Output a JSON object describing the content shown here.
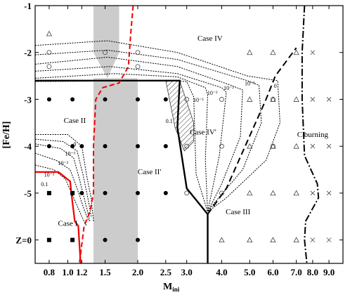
{
  "chart_data": {
    "type": "scatter",
    "xlabel": "M",
    "xlabel_sub": "ini",
    "ylabel": "[Fe/H]",
    "x_ticks": [
      {
        "pos": 0.0,
        "label": "0.8"
      },
      {
        "pos": 0.8,
        "label": "1.0"
      },
      {
        "pos": 1.4,
        "label": "1.2"
      },
      {
        "pos": 2.4,
        "label": "1.5"
      },
      {
        "pos": 3.8,
        "label": "2.0"
      },
      {
        "pos": 5.0,
        "label": "2.5"
      },
      {
        "pos": 5.9,
        "label": "3.0"
      },
      {
        "pos": 7.4,
        "label": "4.0"
      },
      {
        "pos": 8.6,
        "label": "5.0"
      },
      {
        "pos": 9.6,
        "label": "6.0"
      },
      {
        "pos": 10.6,
        "label": "7.0"
      },
      {
        "pos": 11.3,
        "label": "8.0"
      },
      {
        "pos": 12.0,
        "label": "9.0"
      }
    ],
    "y_ticks": [
      {
        "pos": -1,
        "label": "-1"
      },
      {
        "pos": -2,
        "label": "-2"
      },
      {
        "pos": -3,
        "label": "-3"
      },
      {
        "pos": -4,
        "label": "-4"
      },
      {
        "pos": -5,
        "label": "-5"
      },
      {
        "pos": -6,
        "label": "Z=0"
      }
    ],
    "xlim": [
      -0.6,
      12.6
    ],
    "ylim": [
      -6.5,
      -1
    ],
    "region_labels": [
      {
        "text": "Case I",
        "x": 0.8,
        "y": -5.7
      },
      {
        "text": "Case II",
        "x": 1.1,
        "y": -3.5
      },
      {
        "text": "Case II'",
        "x": 4.3,
        "y": -4.6
      },
      {
        "text": "Case III",
        "x": 8.1,
        "y": -5.45
      },
      {
        "text": "Case IV",
        "x": 6.9,
        "y": -1.75
      },
      {
        "text": "Case IV'",
        "x": 6.6,
        "y": -3.75
      },
      {
        "text": "C burning",
        "x": 11.3,
        "y": -3.8
      }
    ],
    "contour_labels": [
      {
        "text": "0",
        "x": 1.1,
        "y": -4.0
      },
      {
        "text": "10⁻³",
        "x": 0.9,
        "y": -4.2
      },
      {
        "text": "10⁻²",
        "x": 0.6,
        "y": -4.4
      },
      {
        "text": "10⁻²",
        "x": 0.0,
        "y": -4.65
      },
      {
        "text": "0.1",
        "x": -0.2,
        "y": -4.85
      },
      {
        "text": "0.1",
        "x": 5.15,
        "y": -3.5
      },
      {
        "text": "10⁻³",
        "x": 6.4,
        "y": -3.05
      },
      {
        "text": "10⁻²",
        "x": 7.0,
        "y": -2.9
      },
      {
        "text": "10⁻²",
        "x": 7.7,
        "y": -2.8
      },
      {
        "text": "10⁻³",
        "x": 8.6,
        "y": -2.7
      },
      {
        "text": "0",
        "x": 9.7,
        "y": -2.75
      }
    ],
    "series": [
      {
        "marker": "filled-circle",
        "points": [
          [
            0,
            -3
          ],
          [
            1,
            -3
          ],
          [
            2.4,
            -3
          ],
          [
            3.8,
            -3
          ],
          [
            5,
            -3
          ],
          [
            0,
            -4
          ],
          [
            1,
            -4
          ],
          [
            1.4,
            -4
          ],
          [
            2.4,
            -4
          ],
          [
            3.8,
            -4
          ],
          [
            5,
            -4
          ],
          [
            1.4,
            -5
          ],
          [
            2.4,
            -5
          ],
          [
            3.8,
            -5
          ],
          [
            5,
            -5
          ],
          [
            2.4,
            -6
          ],
          [
            3.8,
            -6
          ]
        ]
      },
      {
        "marker": "filled-square",
        "points": [
          [
            0,
            -5
          ],
          [
            1,
            -5
          ],
          [
            0,
            -6
          ],
          [
            1,
            -6
          ]
        ]
      },
      {
        "marker": "open-triangle",
        "points": [
          [
            0,
            -1.6
          ],
          [
            8.6,
            -2
          ],
          [
            9.6,
            -2
          ],
          [
            10.6,
            -2
          ],
          [
            8.6,
            -3
          ],
          [
            9.6,
            -3
          ],
          [
            10.6,
            -3
          ],
          [
            8.6,
            -4
          ],
          [
            9.6,
            -4
          ],
          [
            10.6,
            -4
          ],
          [
            8.6,
            -5
          ],
          [
            9.6,
            -5
          ],
          [
            10.6,
            -5
          ],
          [
            7.4,
            -6
          ],
          [
            8.6,
            -6
          ],
          [
            9.6,
            -6
          ],
          [
            10.6,
            -6
          ]
        ]
      },
      {
        "marker": "open-circle",
        "points": [
          [
            0,
            -2
          ],
          [
            0,
            -2.3
          ],
          [
            2.4,
            -2
          ],
          [
            3.8,
            -2
          ],
          [
            3.8,
            -2.3
          ],
          [
            5.9,
            -3
          ],
          [
            7.4,
            -3
          ],
          [
            5.9,
            -4
          ],
          [
            7.4,
            -4
          ],
          [
            9.6,
            -4
          ],
          [
            5.9,
            -5
          ],
          [
            7.4,
            -5
          ],
          [
            9.6,
            -3
          ]
        ]
      },
      {
        "marker": "cross",
        "points": [
          [
            11.3,
            -2
          ],
          [
            11.3,
            -3
          ],
          [
            12,
            -3
          ],
          [
            11.3,
            -4
          ],
          [
            12,
            -4
          ],
          [
            11.3,
            -5
          ],
          [
            12,
            -5
          ],
          [
            11.3,
            -6
          ],
          [
            12,
            -6
          ]
        ]
      }
    ]
  }
}
